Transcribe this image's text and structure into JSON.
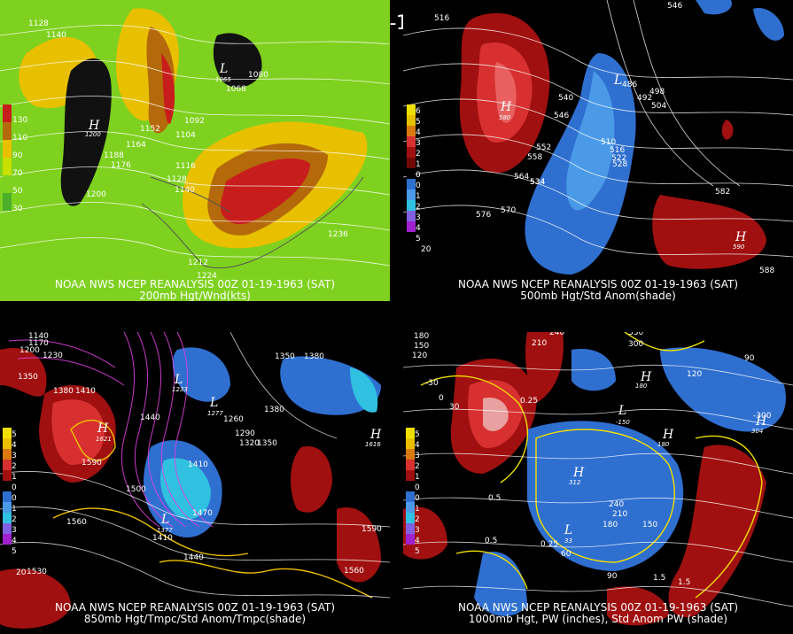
{
  "main_title": "00Z 01-19-1963 (SAT)",
  "panels": [
    {
      "caption_line1": "NOAA NWS NCEP REANALYSIS 00Z 01-19-1963 (SAT)",
      "caption_line2": "200mb Hgt/Wnd(kts)",
      "colorbar": [
        "130",
        "110",
        "90",
        "70",
        "50",
        "30"
      ],
      "contour_labels": [
        "1128",
        "1140",
        "1152",
        "1164",
        "1188",
        "1176",
        "1104",
        "1092",
        "1116",
        "1128",
        "1140",
        "1080",
        "1068",
        "1200",
        "1236",
        "1212",
        "1224"
      ],
      "lows": [
        {
          "letter": "L",
          "value": "1065"
        }
      ],
      "highs": [
        {
          "letter": "H",
          "value": "1200"
        }
      ]
    },
    {
      "caption_line1": "NOAA NWS NCEP REANALYSIS 00Z 01-19-1963 (SAT)",
      "caption_line2": "500mb Hgt/Std Anom(shade)",
      "colorbar": [
        "6",
        "5",
        "4",
        "3",
        "2",
        "1",
        "0",
        "0",
        "1",
        "2",
        "3",
        "4",
        "5"
      ],
      "contour_labels": [
        "516",
        "534",
        "546",
        "540",
        "546",
        "552",
        "558",
        "564",
        "576",
        "570",
        "534",
        "510",
        "516",
        "522",
        "528",
        "498",
        "492",
        "504",
        "582",
        "588",
        "486"
      ],
      "lows": [
        {
          "letter": "L",
          "value": "486"
        }
      ],
      "highs": [
        {
          "letter": "H",
          "value": "580"
        },
        {
          "letter": "H",
          "value": "590"
        }
      ]
    },
    {
      "caption_line1": "NOAA NWS NCEP REANALYSIS 00Z 01-19-1963 (SAT)",
      "caption_line2": "850mb Hgt/Tmpc/Std Anom/Tmpc(shade)",
      "colorbar": [
        "5",
        "4",
        "3",
        "2",
        "1",
        "0",
        "0",
        "1",
        "2",
        "3",
        "4",
        "5"
      ],
      "contour_labels": [
        "1140",
        "1170",
        "1200",
        "1230",
        "1350",
        "1410",
        "1380",
        "1440",
        "1590",
        "1500",
        "1560",
        "1410",
        "1470",
        "1410",
        "1260",
        "1290",
        "1320",
        "1350",
        "1380",
        "1350",
        "1380",
        "1530",
        "1440",
        "1590",
        "1560"
      ],
      "lows": [
        {
          "letter": "L",
          "value": "1233"
        },
        {
          "letter": "L",
          "value": "1277"
        },
        {
          "letter": "L",
          "value": "1377"
        }
      ],
      "highs": [
        {
          "letter": "H",
          "value": "1621"
        },
        {
          "letter": "H",
          "value": "1616"
        }
      ]
    },
    {
      "caption_line1": "NOAA NWS NCEP REANALYSIS 00Z 01-19-1963 (SAT)",
      "caption_line2": "1000mb Hgt, PW (inches), Std Anom PW (shade)",
      "colorbar": [
        "5",
        "4",
        "3",
        "2",
        "1",
        "0",
        "0",
        "1",
        "2",
        "3",
        "4",
        "5"
      ],
      "contour_labels": [
        "180",
        "150",
        "120",
        "240",
        "210",
        "330",
        "300",
        "120",
        "90",
        "-300",
        "-30",
        "0",
        "30",
        "60",
        "90",
        "150",
        "180",
        "210",
        "240",
        "1.5",
        "0.5",
        "0.25",
        "0.5",
        "0.25",
        "1.5"
      ],
      "lows": [
        {
          "letter": "L",
          "value": "-150"
        },
        {
          "letter": "L",
          "value": "33"
        }
      ],
      "highs": [
        {
          "letter": "H",
          "value": "312"
        },
        {
          "letter": "H",
          "value": "304"
        },
        {
          "letter": "H",
          "value": "180"
        },
        {
          "letter": "H",
          "value": "180"
        }
      ]
    }
  ]
}
